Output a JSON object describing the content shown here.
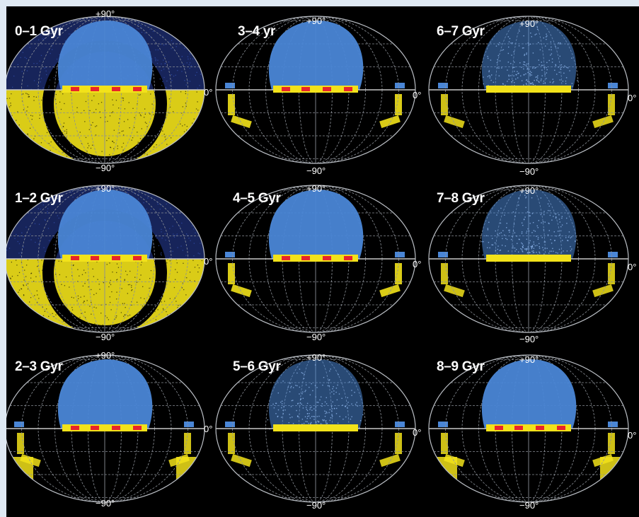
{
  "figure": {
    "colors": {
      "background": "#000000",
      "frame": "#dfe9f3",
      "grid": "#8a8f96",
      "equator": "#c8c8c8",
      "blue_region": "#4a86d6",
      "yellow_region": "#f2e21a",
      "red_marks": "#e8242a"
    },
    "panels": [
      {
        "title": "0–1 Gyr",
        "top_label": "+90°",
        "bottom_label": "−90°",
        "equator_label": "0°",
        "style": "dense"
      },
      {
        "title": "3–4 yr",
        "top_label": "+90°",
        "bottom_label": "−90°",
        "equator_label": "0°",
        "style": "sparse"
      },
      {
        "title": "6–7 Gyr",
        "top_label": "+90°",
        "bottom_label": "−90°",
        "equator_label": "0°",
        "style": "faint"
      },
      {
        "title": "1–2 Gyr",
        "top_label": "+90°",
        "bottom_label": "−90°",
        "equator_label": "0°",
        "style": "dense"
      },
      {
        "title": "4–5 Gyr",
        "top_label": "+90°",
        "bottom_label": "−90°",
        "equator_label": "0°",
        "style": "sparse"
      },
      {
        "title": "7–8 Gyr",
        "top_label": "+90°",
        "bottom_label": "−90°",
        "equator_label": "0°",
        "style": "faint"
      },
      {
        "title": "2–3 Gyr",
        "top_label": "+90°",
        "bottom_label": "−90°",
        "equator_label": "0°",
        "style": "medium"
      },
      {
        "title": "5–6 Gyr",
        "top_label": "+90°",
        "bottom_label": "−90°",
        "equator_label": "0°",
        "style": "faint"
      },
      {
        "title": "8–9 Gyr",
        "top_label": "+90°",
        "bottom_label": "−90°",
        "equator_label": "0°",
        "style": "medium"
      }
    ]
  }
}
